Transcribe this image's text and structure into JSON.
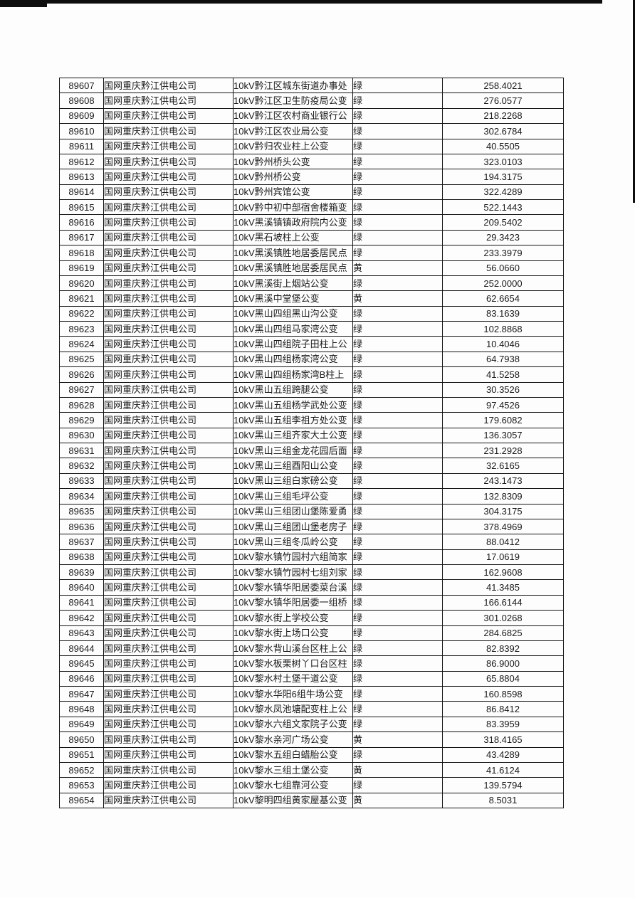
{
  "document": {
    "rows": [
      {
        "id": "89607",
        "company": "国网重庆黔江供电公司",
        "station": "10kV黔江区城东街道办事处",
        "status": "绿",
        "value": "258.4021"
      },
      {
        "id": "89608",
        "company": "国网重庆黔江供电公司",
        "station": "10kV黔江区卫生防疫局公变",
        "status": "绿",
        "value": "276.0577"
      },
      {
        "id": "89609",
        "company": "国网重庆黔江供电公司",
        "station": "10kV黔江区农村商业银行公",
        "status": "绿",
        "value": "218.2268"
      },
      {
        "id": "89610",
        "company": "国网重庆黔江供电公司",
        "station": "10kV黔江区农业局公变",
        "status": "绿",
        "value": "302.6784"
      },
      {
        "id": "89611",
        "company": "国网重庆黔江供电公司",
        "station": "10kV黔归农业柱上公变",
        "status": "绿",
        "value": "40.5505"
      },
      {
        "id": "89612",
        "company": "国网重庆黔江供电公司",
        "station": "10kV黔州桥头公变",
        "status": "绿",
        "value": "323.0103"
      },
      {
        "id": "89613",
        "company": "国网重庆黔江供电公司",
        "station": "10kV黔州桥公变",
        "status": "绿",
        "value": "194.3175"
      },
      {
        "id": "89614",
        "company": "国网重庆黔江供电公司",
        "station": "10kV黔州宾馆公变",
        "status": "绿",
        "value": "322.4289"
      },
      {
        "id": "89615",
        "company": "国网重庆黔江供电公司",
        "station": "10kV黔中初中部宿舍楼箱变",
        "status": "绿",
        "value": "522.1443"
      },
      {
        "id": "89616",
        "company": "国网重庆黔江供电公司",
        "station": "10kV黑溪镇镇政府院内公变",
        "status": "绿",
        "value": "209.5402"
      },
      {
        "id": "89617",
        "company": "国网重庆黔江供电公司",
        "station": "10kV黑石坡柱上公变",
        "status": "绿",
        "value": "29.3423"
      },
      {
        "id": "89618",
        "company": "国网重庆黔江供电公司",
        "station": "10kV黑溪镇胜地居委居民点",
        "status": "绿",
        "value": "233.3979"
      },
      {
        "id": "89619",
        "company": "国网重庆黔江供电公司",
        "station": "10kV黑溪镇胜地居委居民点",
        "status": "黄",
        "value": "56.0660"
      },
      {
        "id": "89620",
        "company": "国网重庆黔江供电公司",
        "station": "10kV黑溪街上烟站公变",
        "status": "绿",
        "value": "252.0000"
      },
      {
        "id": "89621",
        "company": "国网重庆黔江供电公司",
        "station": "10kV黑溪中堂堡公变",
        "status": "黄",
        "value": "62.6654"
      },
      {
        "id": "89622",
        "company": "国网重庆黔江供电公司",
        "station": "10kV黑山四组黑山沟公变",
        "status": "绿",
        "value": "83.1639"
      },
      {
        "id": "89623",
        "company": "国网重庆黔江供电公司",
        "station": "10kV黑山四组马家湾公变",
        "status": "绿",
        "value": "102.8868"
      },
      {
        "id": "89624",
        "company": "国网重庆黔江供电公司",
        "station": "10kV黑山四组院子田柱上公",
        "status": "绿",
        "value": "10.4046"
      },
      {
        "id": "89625",
        "company": "国网重庆黔江供电公司",
        "station": "10kV黑山四组杨家湾公变",
        "status": "绿",
        "value": "64.7938"
      },
      {
        "id": "89626",
        "company": "国网重庆黔江供电公司",
        "station": "10kV黑山四组杨家湾B柱上",
        "status": "绿",
        "value": "41.5258"
      },
      {
        "id": "89627",
        "company": "国网重庆黔江供电公司",
        "station": "10kV黑山五组跨腿公变",
        "status": "绿",
        "value": "30.3526"
      },
      {
        "id": "89628",
        "company": "国网重庆黔江供电公司",
        "station": "10kV黑山五组杨学武处公变",
        "status": "绿",
        "value": "97.4526"
      },
      {
        "id": "89629",
        "company": "国网重庆黔江供电公司",
        "station": "10kV黑山五组李祖方处公变",
        "status": "绿",
        "value": "179.6082"
      },
      {
        "id": "89630",
        "company": "国网重庆黔江供电公司",
        "station": "10kV黑山三组齐家大土公变",
        "status": "绿",
        "value": "136.3057"
      },
      {
        "id": "89631",
        "company": "国网重庆黔江供电公司",
        "station": "10kV黑山三组金龙花园后面",
        "status": "绿",
        "value": "231.2928"
      },
      {
        "id": "89632",
        "company": "国网重庆黔江供电公司",
        "station": "10kV黑山三组酉阳山公变",
        "status": "绿",
        "value": "32.6165"
      },
      {
        "id": "89633",
        "company": "国网重庆黔江供电公司",
        "station": "10kV黑山三组白家磅公变",
        "status": "绿",
        "value": "243.1473"
      },
      {
        "id": "89634",
        "company": "国网重庆黔江供电公司",
        "station": "10kV黑山三组毛坪公变",
        "status": "绿",
        "value": "132.8309"
      },
      {
        "id": "89635",
        "company": "国网重庆黔江供电公司",
        "station": "10kV黑山三组团山堡陈爱勇",
        "status": "绿",
        "value": "304.3175"
      },
      {
        "id": "89636",
        "company": "国网重庆黔江供电公司",
        "station": "10kV黑山三组团山堡老房子",
        "status": "绿",
        "value": "378.4969"
      },
      {
        "id": "89637",
        "company": "国网重庆黔江供电公司",
        "station": "10kV黑山三组冬瓜岭公变",
        "status": "绿",
        "value": "88.0412"
      },
      {
        "id": "89638",
        "company": "国网重庆黔江供电公司",
        "station": "10kV黎水镇竹园村六组简家",
        "status": "绿",
        "value": "17.0619"
      },
      {
        "id": "89639",
        "company": "国网重庆黔江供电公司",
        "station": "10kV黎水镇竹园村七组刘家",
        "status": "绿",
        "value": "162.9608"
      },
      {
        "id": "89640",
        "company": "国网重庆黔江供电公司",
        "station": "10kV黎水镇华阳居委菜台溪",
        "status": "绿",
        "value": "41.3485"
      },
      {
        "id": "89641",
        "company": "国网重庆黔江供电公司",
        "station": "10kV黎水镇华阳居委一组桥",
        "status": "绿",
        "value": "166.6144"
      },
      {
        "id": "89642",
        "company": "国网重庆黔江供电公司",
        "station": "10kV黎水街上学校公变",
        "status": "绿",
        "value": "301.0268"
      },
      {
        "id": "89643",
        "company": "国网重庆黔江供电公司",
        "station": "10kV黎水街上场口公变",
        "status": "绿",
        "value": "284.6825"
      },
      {
        "id": "89644",
        "company": "国网重庆黔江供电公司",
        "station": "10kV黎水背山溪台区柱上公",
        "status": "绿",
        "value": "82.8392"
      },
      {
        "id": "89645",
        "company": "国网重庆黔江供电公司",
        "station": "10kV黎水板栗树丫口台区柱",
        "status": "绿",
        "value": "86.9000"
      },
      {
        "id": "89646",
        "company": "国网重庆黔江供电公司",
        "station": "10kV黎水村土堡干道公变",
        "status": "绿",
        "value": "65.8804"
      },
      {
        "id": "89647",
        "company": "国网重庆黔江供电公司",
        "station": "10kV黎水华阳6组牛场公变",
        "status": "绿",
        "value": "160.8598"
      },
      {
        "id": "89648",
        "company": "国网重庆黔江供电公司",
        "station": "10kV黎水凤池塘配变柱上公",
        "status": "绿",
        "value": "86.8412"
      },
      {
        "id": "89649",
        "company": "国网重庆黔江供电公司",
        "station": "10kV黎水六组文家院子公变",
        "status": "绿",
        "value": "83.3959"
      },
      {
        "id": "89650",
        "company": "国网重庆黔江供电公司",
        "station": "10kV黎水亲河广场公变",
        "status": "黄",
        "value": "318.4165"
      },
      {
        "id": "89651",
        "company": "国网重庆黔江供电公司",
        "station": "10kV黎水五组白蜡胎公变",
        "status": "绿",
        "value": "43.4289"
      },
      {
        "id": "89652",
        "company": "国网重庆黔江供电公司",
        "station": "10kV黎水三组土堡公变",
        "status": "黄",
        "value": "41.6124"
      },
      {
        "id": "89653",
        "company": "国网重庆黔江供电公司",
        "station": "10kV黎水七组靠河公变",
        "status": "绿",
        "value": "139.5794"
      },
      {
        "id": "89654",
        "company": "国网重庆黔江供电公司",
        "station": "10kV黎明四组黄家屋基公变",
        "status": "黄",
        "value": "8.5031"
      }
    ],
    "column_keys": [
      "id",
      "company",
      "station",
      "status",
      "value"
    ],
    "status_colors": {
      "绿": "green",
      "黄": "yellow"
    }
  }
}
